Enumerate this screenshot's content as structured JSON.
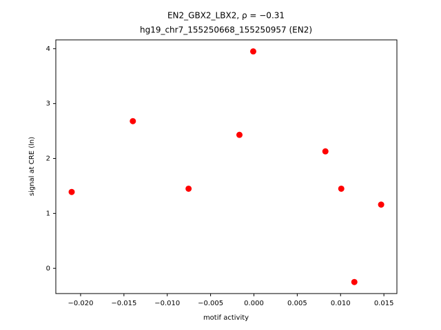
{
  "chart_data": {
    "type": "scatter",
    "title": "EN2_GBX2_LBX2, ρ = −0.31",
    "subtitle": "hg19_chr7_155250668_155250957 (EN2)",
    "x_label": "motif activity",
    "y_label": "signal at CRE (ln)",
    "color": "#ff0000",
    "x": [
      -0.02103,
      -0.01397,
      -0.00754,
      -0.00167,
      -8e-05,
      0.00825,
      0.01008,
      0.01159,
      0.01468
    ],
    "values": [
      1.39,
      2.68,
      1.45,
      2.43,
      3.95,
      2.13,
      1.45,
      -0.25,
      1.16
    ],
    "xlim": [
      -0.02286,
      0.0165
    ],
    "ylim": [
      -0.46,
      4.16
    ],
    "xticks": [
      {
        "value": -0.02,
        "label": "−0.020"
      },
      {
        "value": -0.015,
        "label": "−0.015"
      },
      {
        "value": -0.01,
        "label": "−0.010"
      },
      {
        "value": -0.005,
        "label": "−0.005"
      },
      {
        "value": 0,
        "label": "0.000"
      },
      {
        "value": 0.005,
        "label": "0.005"
      },
      {
        "value": 0.01,
        "label": "0.010"
      },
      {
        "value": 0.015,
        "label": "0.015"
      }
    ],
    "yticks": [
      0,
      1,
      2,
      3,
      4
    ]
  }
}
